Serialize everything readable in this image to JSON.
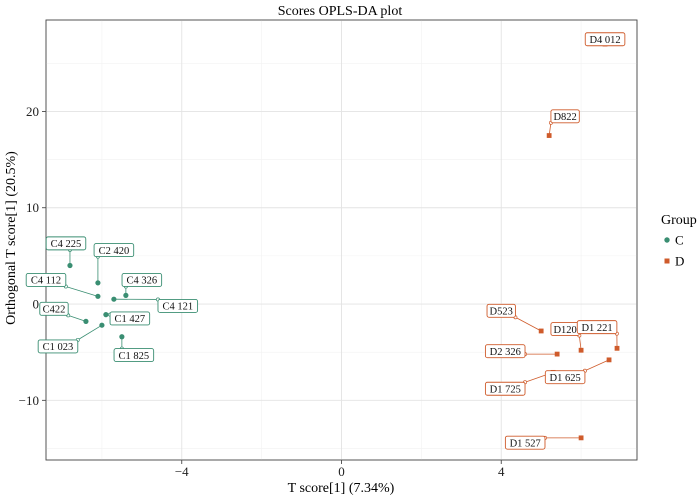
{
  "chart_data": {
    "type": "scatter",
    "title": "Scores OPLS-DA plot",
    "xlabel": "T score[1] (7.34%)",
    "ylabel": "Orthogonal T score[1] (20.5%)",
    "xlim": [
      -7.4,
      7.4
    ],
    "ylim": [
      -16.2,
      29.5
    ],
    "x_ticks": [
      -4,
      0,
      4
    ],
    "x_tick_labels": [
      "−4",
      "0",
      "4"
    ],
    "y_ticks": [
      -10,
      0,
      10,
      20
    ],
    "y_tick_labels": [
      "−10",
      "0",
      "10",
      "20"
    ],
    "grid": true,
    "legend": {
      "title": "Group",
      "position": "right",
      "entries": [
        {
          "name": "C",
          "color": "#3a8e72",
          "shape": "circle"
        },
        {
          "name": "D",
          "color": "#cf5b2b",
          "shape": "square"
        }
      ]
    },
    "series": [
      {
        "name": "C",
        "color": "#3a8e72",
        "marker": "circle",
        "points": [
          {
            "label": "C4 225",
            "x": -6.8,
            "y": 4.0,
            "label_x": -6.9,
            "label_y": 6.3
          },
          {
            "label": "C2 420",
            "x": -6.1,
            "y": 2.2,
            "label_x": -5.7,
            "label_y": 5.6
          },
          {
            "label": "C4 112",
            "x": -6.1,
            "y": 0.8,
            "label_x": -7.4,
            "label_y": 2.5
          },
          {
            "label": "C4 326",
            "x": -5.4,
            "y": 0.9,
            "label_x": -5.0,
            "label_y": 2.5
          },
          {
            "label": "C4 121",
            "x": -5.7,
            "y": 0.5,
            "label_x": -4.1,
            "label_y": -0.2
          },
          {
            "label": "C422",
            "x": -6.4,
            "y": -1.8,
            "label_x": -7.2,
            "label_y": -0.5
          },
          {
            "label": "C1 427",
            "x": -5.9,
            "y": -1.1,
            "label_x": -5.3,
            "label_y": -1.5
          },
          {
            "label": "C1 023",
            "x": -6.0,
            "y": -2.2,
            "label_x": -7.1,
            "label_y": -4.4
          },
          {
            "label": "C1 825",
            "x": -5.5,
            "y": -3.4,
            "label_x": -5.2,
            "label_y": -5.3
          }
        ]
      },
      {
        "name": "D",
        "color": "#cf5b2b",
        "marker": "square",
        "points": [
          {
            "label": "D4 012",
            "x": 6.6,
            "y": 27.0,
            "label_x": 6.6,
            "label_y": 27.5
          },
          {
            "label": "D822",
            "x": 5.2,
            "y": 17.5,
            "label_x": 5.6,
            "label_y": 19.5
          },
          {
            "label": "D523",
            "x": 5.0,
            "y": -2.8,
            "label_x": 4.0,
            "label_y": -0.7
          },
          {
            "label": "D120",
            "x": 6.0,
            "y": -4.8,
            "label_x": 5.6,
            "label_y": -2.6
          },
          {
            "label": "D1 221",
            "x": 6.9,
            "y": -4.6,
            "label_x": 6.4,
            "label_y": -2.4
          },
          {
            "label": "D2 326",
            "x": 5.4,
            "y": -5.2,
            "label_x": 4.1,
            "label_y": -4.9
          },
          {
            "label": "D1 625",
            "x": 6.7,
            "y": -5.8,
            "label_x": 5.6,
            "label_y": -7.6
          },
          {
            "label": "D1 725",
            "x": 5.3,
            "y": -7.1,
            "label_x": 4.1,
            "label_y": -8.8
          },
          {
            "label": "D1 527",
            "x": 6.0,
            "y": -13.9,
            "label_x": 4.6,
            "label_y": -14.4
          }
        ]
      }
    ]
  }
}
